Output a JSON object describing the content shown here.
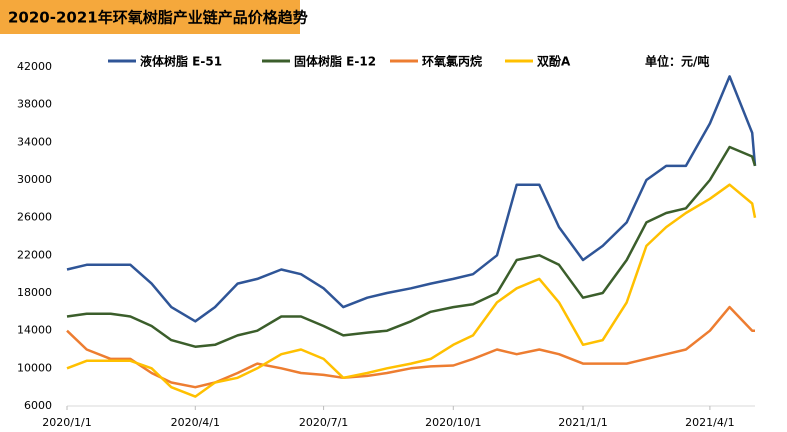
{
  "chart_data": {
    "type": "line",
    "title": "2020-2021年环氧树脂产业链产品价格趋势",
    "annotation": "单位：元/吨",
    "x": [
      "2020/1/1",
      "2020/1/15",
      "2020/2/1",
      "2020/2/15",
      "2020/3/1",
      "2020/3/15",
      "2020/4/1",
      "2020/4/15",
      "2020/5/1",
      "2020/5/15",
      "2020/6/1",
      "2020/6/15",
      "2020/7/1",
      "2020/7/15",
      "2020/8/1",
      "2020/8/15",
      "2020/9/1",
      "2020/9/15",
      "2020/10/1",
      "2020/10/15",
      "2020/11/1",
      "2020/11/15",
      "2020/12/1",
      "2020/12/15",
      "2021/1/1",
      "2021/1/15",
      "2021/2/1",
      "2021/2/15",
      "2021/3/1",
      "2021/3/15",
      "2021/4/1",
      "2021/4/15",
      "2021/5/1",
      "2021/5/3"
    ],
    "series": [
      {
        "name": "液体树脂 E-51",
        "color": "#2f5597",
        "values": [
          20500,
          21000,
          21000,
          21000,
          19000,
          16500,
          15000,
          16500,
          19000,
          19500,
          20500,
          20000,
          18500,
          16500,
          17500,
          18000,
          18500,
          19000,
          19500,
          20000,
          22000,
          29500,
          29500,
          25000,
          21500,
          23000,
          25500,
          30000,
          31500,
          31500,
          36000,
          41000,
          35000,
          31500
        ]
      },
      {
        "name": "固体树脂 E-12",
        "color": "#3b5e2b",
        "values": [
          15500,
          15800,
          15800,
          15500,
          14500,
          13000,
          12300,
          12500,
          13500,
          14000,
          15500,
          15500,
          14500,
          13500,
          13800,
          14000,
          15000,
          16000,
          16500,
          16800,
          18000,
          21500,
          22000,
          21000,
          17500,
          18000,
          21500,
          25500,
          26500,
          27000,
          30000,
          33500,
          32500,
          31500
        ]
      },
      {
        "name": "环氧氯丙烷",
        "color": "#ed7d31",
        "values": [
          14000,
          12000,
          11000,
          11000,
          9500,
          8500,
          8000,
          8500,
          9500,
          10500,
          10000,
          9500,
          9300,
          9000,
          9200,
          9500,
          10000,
          10200,
          10300,
          11000,
          12000,
          11500,
          12000,
          11500,
          10500,
          10500,
          10500,
          11000,
          11500,
          12000,
          14000,
          16500,
          14000,
          14000
        ]
      },
      {
        "name": "双酚A",
        "color": "#ffc000",
        "values": [
          10000,
          10800,
          10800,
          10800,
          10000,
          8000,
          7000,
          8500,
          9000,
          10000,
          11500,
          12000,
          11000,
          9000,
          9500,
          10000,
          10500,
          11000,
          12500,
          13500,
          17000,
          18500,
          19500,
          17000,
          12500,
          13000,
          17000,
          23000,
          25000,
          26500,
          28000,
          29500,
          27500,
          26000
        ]
      }
    ],
    "xlim": [
      "2020/1/1",
      "2021/5/3"
    ],
    "xticks": [
      "2020/1/1",
      "2020/4/1",
      "2020/7/1",
      "2020/10/1",
      "2021/1/1",
      "2021/4/1"
    ],
    "ylim": [
      6000,
      42000
    ],
    "yticks": [
      6000,
      10000,
      14000,
      18000,
      22000,
      26000,
      30000,
      34000,
      38000,
      42000
    ],
    "grid": false
  }
}
